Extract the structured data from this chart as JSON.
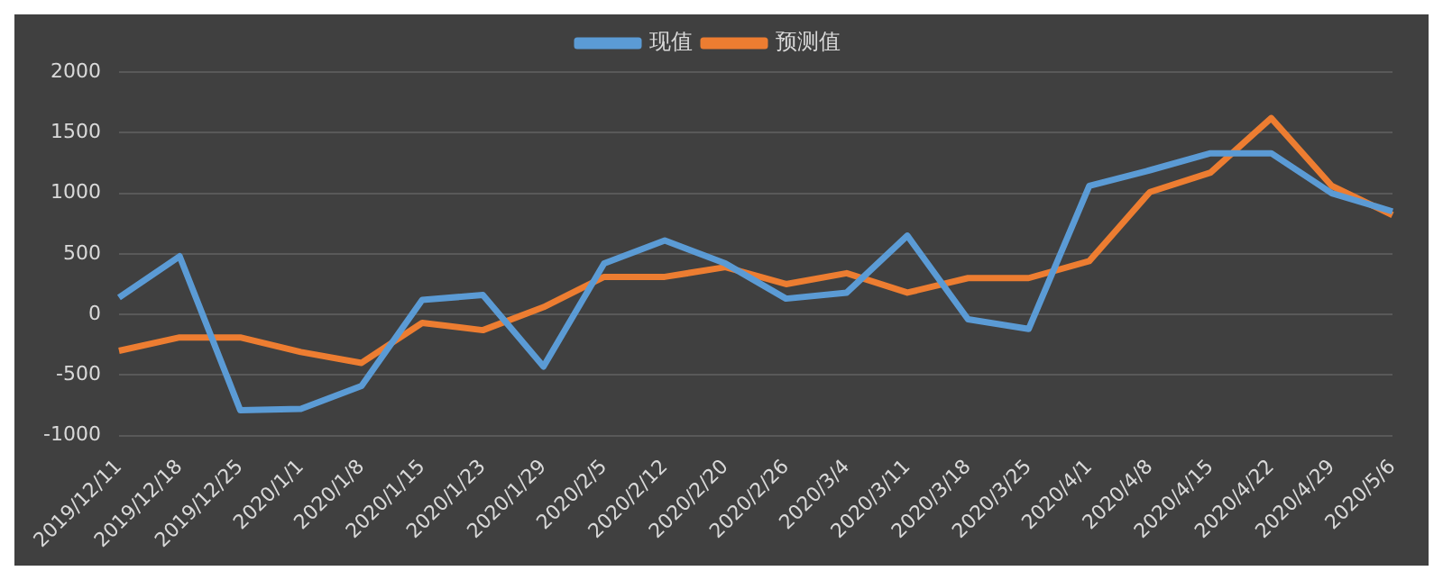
{
  "chart_data": {
    "type": "line",
    "categories": [
      "2019/12/11",
      "2019/12/18",
      "2019/12/25",
      "2020/1/1",
      "2020/1/8",
      "2020/1/15",
      "2020/1/23",
      "2020/1/29",
      "2020/2/5",
      "2020/2/12",
      "2020/2/20",
      "2020/2/26",
      "2020/3/4",
      "2020/3/11",
      "2020/3/18",
      "2020/3/25",
      "2020/4/1",
      "2020/4/8",
      "2020/4/15",
      "2020/4/22",
      "2020/4/29",
      "2020/5/6"
    ],
    "series": [
      {
        "name": "现值",
        "color": "#5b9bd5",
        "values": [
          140,
          480,
          -790,
          -780,
          -590,
          120,
          160,
          -430,
          420,
          610,
          420,
          130,
          180,
          650,
          -40,
          -120,
          1060,
          1190,
          1330,
          1330,
          1000,
          850
        ]
      },
      {
        "name": "预测值",
        "color": "#ed7d31",
        "values": [
          -300,
          -190,
          -190,
          -310,
          -400,
          -70,
          -130,
          60,
          310,
          310,
          390,
          250,
          340,
          180,
          300,
          300,
          440,
          1010,
          1170,
          1620,
          1060,
          820
        ]
      }
    ],
    "ylim": [
      -1000,
      2000
    ],
    "yticks": [
      -1000,
      -500,
      0,
      500,
      1000,
      1500,
      2000
    ],
    "grid": "y",
    "legend": "top",
    "marker": "none",
    "line_style": "solid"
  }
}
